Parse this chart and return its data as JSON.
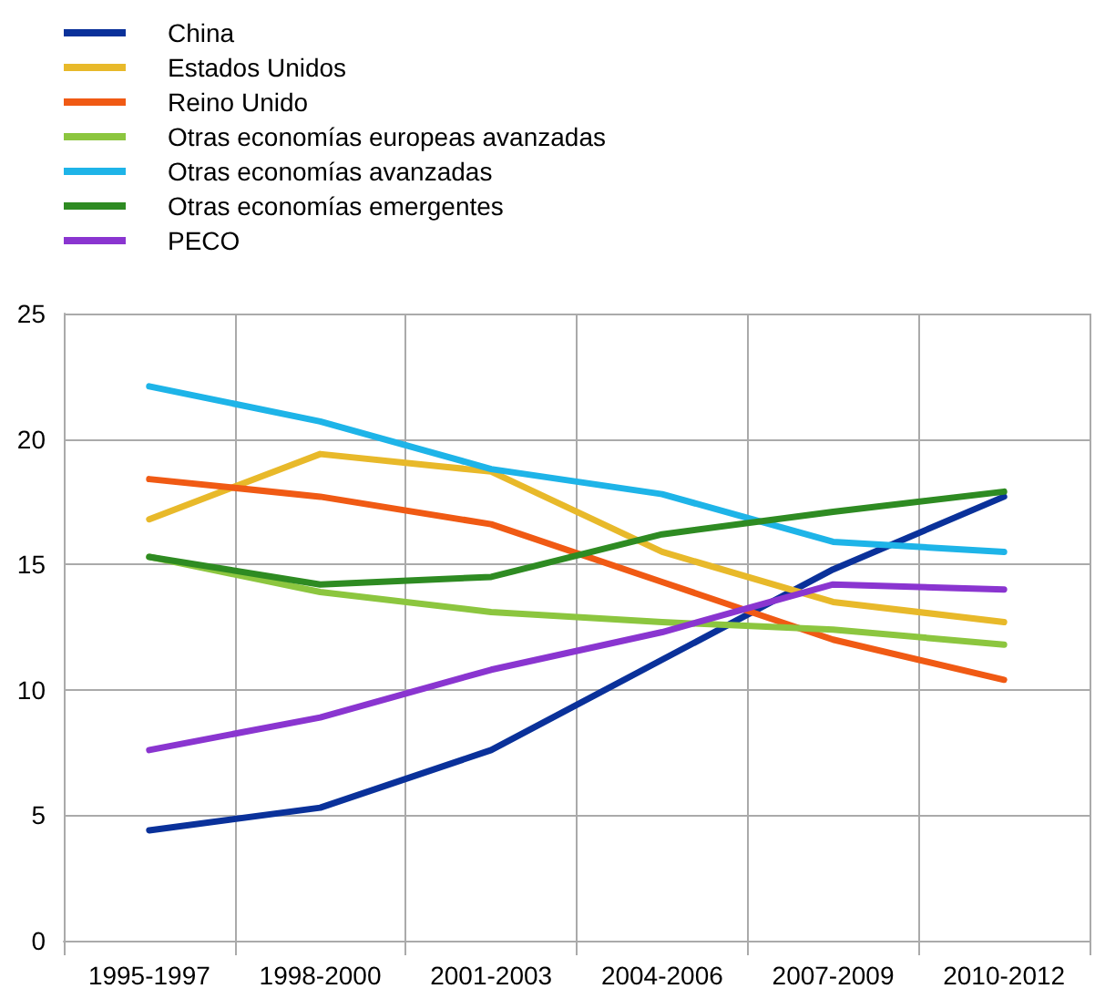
{
  "chart_data": {
    "type": "line",
    "categories": [
      "1995-1997",
      "1998-2000",
      "2001-2003",
      "2004-2006",
      "2007-2009",
      "2010-2012"
    ],
    "series": [
      {
        "name": "China",
        "color": "#0a319a",
        "values": [
          4.4,
          5.3,
          7.6,
          11.2,
          14.8,
          17.7
        ]
      },
      {
        "name": "Estados Unidos",
        "color": "#e8b92a",
        "values": [
          16.8,
          19.4,
          18.7,
          15.5,
          13.5,
          12.7
        ]
      },
      {
        "name": "Reino Unido",
        "color": "#f05a14",
        "values": [
          18.4,
          17.7,
          16.6,
          14.3,
          12.0,
          10.4
        ]
      },
      {
        "name": "Otras economías europeas avanzadas",
        "color": "#8cc63f",
        "values": [
          15.3,
          13.9,
          13.1,
          12.7,
          12.4,
          11.8
        ]
      },
      {
        "name": "Otras economías avanzadas",
        "color": "#1eb4e8",
        "values": [
          22.1,
          20.7,
          18.8,
          17.8,
          15.9,
          15.5
        ]
      },
      {
        "name": "Otras economías emergentes",
        "color": "#2e8b22",
        "values": [
          15.3,
          14.2,
          14.5,
          16.2,
          17.1,
          17.9
        ]
      },
      {
        "name": "PECO",
        "color": "#8a35d0",
        "values": [
          7.6,
          8.9,
          10.8,
          12.3,
          14.2,
          14.0
        ]
      }
    ],
    "ylim": [
      0,
      25
    ],
    "yticks": [
      0,
      5,
      10,
      15,
      20,
      25
    ],
    "grid": true,
    "legend": "top left",
    "marker": "none",
    "line_style": "solid"
  }
}
